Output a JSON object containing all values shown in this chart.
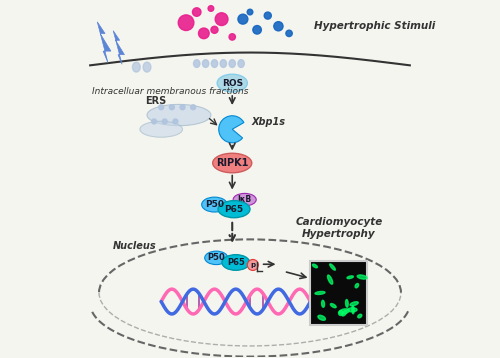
{
  "title": "",
  "bg_color": "#f5f5f0",
  "fig_bg": "#f0f0eb",
  "labels": {
    "hypertrophic_stimuli": "Hypertrophic Stimuli",
    "intracellular": "Intracelluar membranous fractions",
    "cardiomyocyte1": "Cardiomyocyte",
    "cardiomyocyte2": "Hypertrophy",
    "nucleus": "Nucleus",
    "ros": "ROS",
    "ers": "ERS",
    "xbp1s": "Xbp1s",
    "ripk1": "RIPK1",
    "p50": "P50",
    "p65": "P65",
    "ikb": "IκB",
    "p": "p"
  },
  "colors": {
    "ros_fill": "#add8e6",
    "ros_border": "#87ceeb",
    "ripk1_fill": "#f08080",
    "ripk1_border": "#cd5c5c",
    "p65_fill": "#00bcd4",
    "p65_border": "#0097a7",
    "p50_fill": "#4fc3f7",
    "p50_border": "#0288d1",
    "ikb_fill": "#ce93d8",
    "ikb_border": "#9c27b0",
    "p_fill": "#ef9a9a",
    "p_border": "#e53935",
    "pink_dots": "#e91e8c",
    "blue_dots": "#1565c0",
    "lightning": "#5c85d6",
    "xbp1s_fill": "#4fc3f7",
    "xbp1s_border": "#0288d1",
    "arrow_color": "#333333",
    "membrane_color": "#b0c4de",
    "text_color": "#333333",
    "dna_pink": "#ff69b4",
    "dna_blue": "#4169e1",
    "nucleus_border": "#666666",
    "cell_border": "#333333"
  }
}
